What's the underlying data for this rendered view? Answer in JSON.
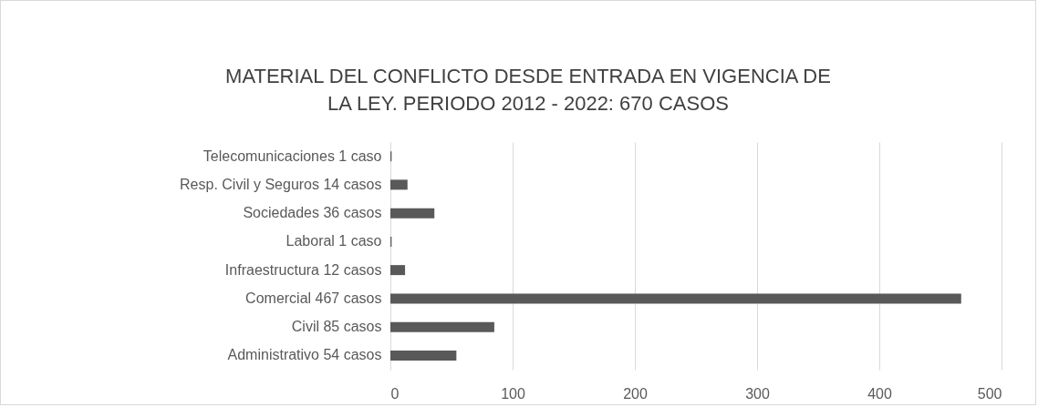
{
  "chart_data": {
    "type": "bar",
    "orientation": "horizontal",
    "title": "MATERIAL DEL CONFLICTO DESDE ENTRADA EN VIGENCIA DE LA LEY. PERIODO 2012 - 2022: 670 CASOS",
    "categories": [
      "Telecomunicaciones 1 caso",
      "Resp. Civil y Seguros 14 casos",
      "Sociedades 36 casos",
      "Laboral 1 caso",
      "Infraestructura 12 casos",
      "Comercial 467 casos",
      "Civil 85 casos",
      "Administrativo 54 casos"
    ],
    "values": [
      1,
      14,
      36,
      1,
      12,
      467,
      85,
      54
    ],
    "color": "#595959",
    "xlim": [
      0,
      500
    ],
    "xticks": [
      0,
      100,
      200,
      300,
      400,
      500
    ],
    "grid": "x"
  }
}
